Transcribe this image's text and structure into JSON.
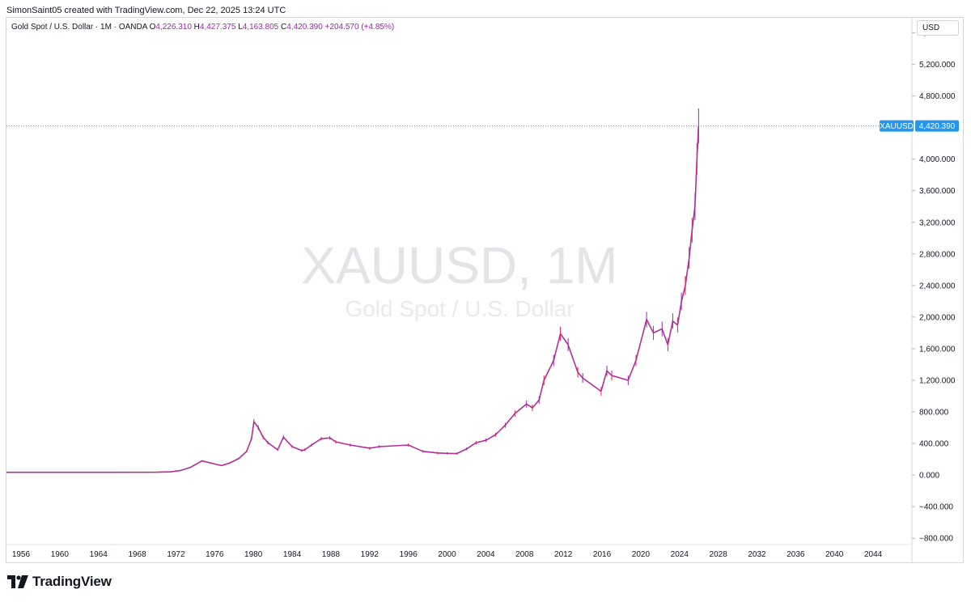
{
  "header": {
    "credit": "SimonSaint05 created with TradingView.com, Dec 22, 2025 13:24 UTC"
  },
  "legend": {
    "title": "Gold Spot / U.S. Dollar · 1M · OANDA",
    "o_label": "O",
    "o_value": "4,226.310",
    "h_label": "H",
    "h_value": "4,427.375",
    "l_label": "L",
    "l_value": "4,163.805",
    "c_label": "C",
    "c_value": "4,420.390",
    "change": "+204.570 (+4.85%)"
  },
  "currency_button": "USD",
  "watermark": {
    "symbol": "XAUUSD, 1M",
    "name": "Gold Spot / U.S. Dollar"
  },
  "price_tag": {
    "symbol": "XAUUSD",
    "value": "4,420.390"
  },
  "footer": {
    "brand": "TradingView"
  },
  "colors": {
    "series": "#b62d95",
    "price_line": "#2196f3",
    "tag_bg": "#2196f3",
    "wick_up": "#9c27b0",
    "wick_down": "#e91e63"
  },
  "chart_data": {
    "type": "line",
    "title": "",
    "xlabel": "",
    "ylabel": "",
    "y_scale": "linear",
    "ylim": [
      -880,
      5800
    ],
    "xlim": [
      1954.5,
      2048
    ],
    "grid": false,
    "y_ticks": [
      -800,
      -400,
      0,
      400,
      800,
      1200,
      1600,
      2000,
      2400,
      2800,
      3200,
      3600,
      4000,
      4800,
      5200,
      5600
    ],
    "y_tick_labels": [
      "−800.000",
      "−400.000",
      "0.000",
      "400.000",
      "800.000",
      "1,200.000",
      "1,600.000",
      "2,000.000",
      "2,400.000",
      "2,800.000",
      "3,200.000",
      "3,600.000",
      "4,000.000",
      "4,800.000",
      "5,200.000",
      "5,600.000"
    ],
    "x_ticks": [
      1956,
      1960,
      1964,
      1968,
      1972,
      1976,
      1980,
      1984,
      1988,
      1992,
      1996,
      2000,
      2004,
      2008,
      2012,
      2016,
      2020,
      2024,
      2028,
      2032,
      2036,
      2040,
      2044
    ],
    "x_tick_labels": [
      "1956",
      "1960",
      "1964",
      "1968",
      "1972",
      "1976",
      "1980",
      "1984",
      "1988",
      "1992",
      "1996",
      "2000",
      "2004",
      "2008",
      "2012",
      "2016",
      "2020",
      "2024",
      "2028",
      "2032",
      "2036",
      "2040",
      "2044"
    ],
    "last_price": 4420.39,
    "series": [
      {
        "x": [
          1954.5,
          1965,
          1970,
          1971.5,
          1972.5,
          1973.5,
          1974.7,
          1975.5,
          1976.7,
          1977.5,
          1978.5,
          1979.3,
          1979.8,
          1980.05,
          1980.5,
          1981,
          1981.5,
          1982.5,
          1983.1,
          1984,
          1985,
          1985.3,
          1986,
          1987,
          1987.9,
          1988.5,
          1990,
          1992,
          1993,
          1996,
          1997.5,
          1999,
          2000,
          2001,
          2002,
          2003,
          2004,
          2005,
          2006,
          2007,
          2008.2,
          2008.8,
          2009.5,
          2010,
          2011,
          2011.7,
          2012.5,
          2013.5,
          2014,
          2015.9,
          2016.5,
          2017,
          2018.7,
          2019.5,
          2020.6,
          2021.3,
          2022.2,
          2022.8,
          2023.3,
          2023.8,
          2024.2,
          2024.6,
          2025,
          2025.3,
          2025.6,
          2025.8,
          2025.97
        ],
        "y": [
          35,
          35,
          36,
          41,
          58,
          97,
          180,
          155,
          120,
          150,
          210,
          300,
          460,
          675,
          600,
          480,
          410,
          320,
          480,
          360,
          310,
          320,
          380,
          460,
          470,
          420,
          380,
          340,
          360,
          380,
          300,
          280,
          275,
          272,
          330,
          410,
          440,
          510,
          630,
          780,
          900,
          850,
          950,
          1200,
          1450,
          1790,
          1650,
          1300,
          1230,
          1060,
          1320,
          1260,
          1200,
          1450,
          1970,
          1800,
          1850,
          1650,
          1950,
          1900,
          2200,
          2400,
          2750,
          3100,
          3400,
          4000,
          4420
        ]
      }
    ]
  }
}
